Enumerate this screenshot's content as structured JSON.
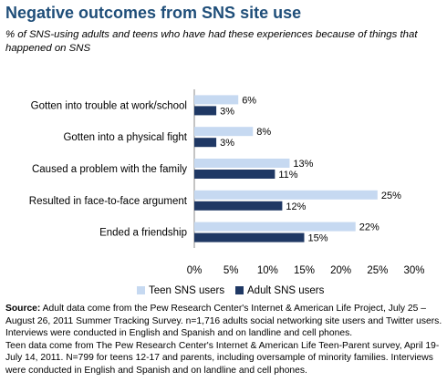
{
  "header": {
    "title": "Negative outcomes from SNS site use",
    "subtitle": "% of SNS-using adults and teens who have had these experiences because of things that happened on SNS"
  },
  "chart_data": {
    "type": "bar",
    "orientation": "horizontal",
    "categories": [
      "Gotten into trouble at work/school",
      "Gotten into a physical fight",
      "Caused a problem with the family",
      "Resulted in face-to-face argument",
      "Ended a friendship"
    ],
    "series": [
      {
        "name": "Teen SNS users",
        "color": "#c6d9f1",
        "values": [
          6,
          8,
          13,
          25,
          22
        ],
        "labels": [
          "6%",
          "8%",
          "13%",
          "25%",
          "22%"
        ]
      },
      {
        "name": "Adult SNS users",
        "color": "#1f3864",
        "values": [
          3,
          3,
          11,
          12,
          15
        ],
        "labels": [
          "3%",
          "3%",
          "11%",
          "12%",
          "15%"
        ]
      }
    ],
    "xlim": [
      0,
      30
    ],
    "xticks": [
      0,
      5,
      10,
      15,
      20,
      25,
      30
    ],
    "xtick_labels": [
      "0%",
      "5%",
      "10%",
      "15%",
      "20%",
      "25%",
      "30%"
    ],
    "grid": false,
    "legend_position": "bottom"
  },
  "notes": {
    "source_label": "Source:",
    "source_text": " Adult data come from the Pew Research Center's Internet & American Life Project, July 25 – August 26, 2011 Summer Tracking Survey. n=1,716 adults social networking site users and Twitter users. Interviews were conducted in English and Spanish and on landline and cell phones.",
    "teen_text": "Teen data come from The Pew Research Center's Internet & American Life Teen-Parent survey, April 19-July 14, 2011. N=799 for teens 12-17 and parents, including oversample of minority families. Interviews were conducted in English and Spanish and on landline and cell phones."
  }
}
